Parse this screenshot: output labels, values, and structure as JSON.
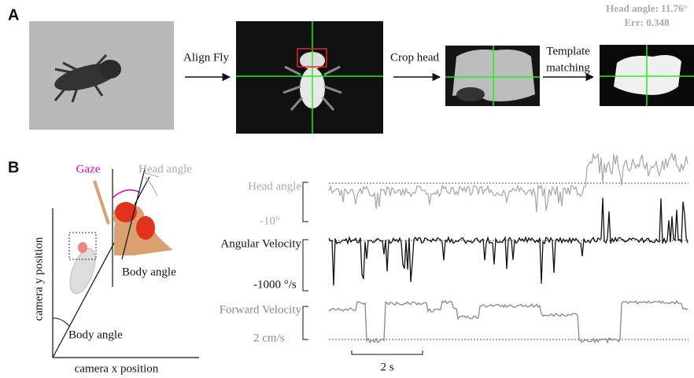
{
  "panel_a": {
    "label": "A",
    "step_1": "Align Fly",
    "step_2": "Crop head",
    "step_3": [
      "Template",
      "matching"
    ],
    "result": [
      "Head angle: 11.76°",
      "Err: 0.348"
    ]
  },
  "panel_b": {
    "label": "B",
    "gaze": "Gaze",
    "head_angle": "Head angle",
    "body_angle_head": "Body angle",
    "body_angle_axis": "Body angle",
    "y_axis": "camera y position",
    "x_axis": "camera x position",
    "traces": [
      {
        "name": "Head angle",
        "scale": "-10°"
      },
      {
        "name": "Angular Velocity",
        "scale": "-1000 °/s"
      },
      {
        "name": "Forward Velocity",
        "scale": "2 cm/s"
      }
    ],
    "time_scale": "2 s"
  }
}
